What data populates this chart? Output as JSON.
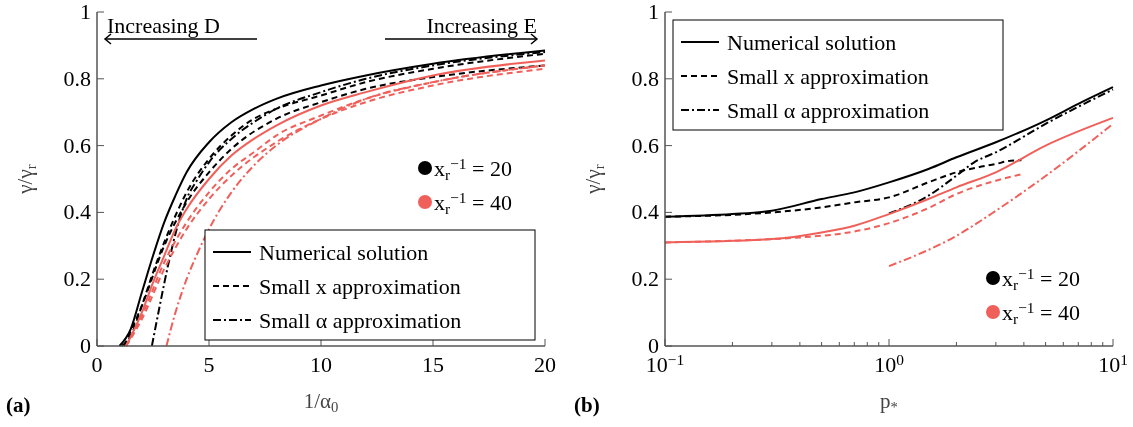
{
  "chart_data": [
    {
      "type": "line",
      "xlabel": "1/α$_{0}$",
      "ylabel": "γ/γ$_{r}$",
      "xlim": [
        0,
        20
      ],
      "xticks": [
        0,
        5,
        10,
        15,
        20
      ],
      "ylim": [
        0,
        1
      ],
      "yticks": [
        0,
        0.2,
        0.4,
        0.6,
        0.8,
        1
      ],
      "legend": "bottom right",
      "grid": false,
      "annotations": [
        "Increasing D",
        "Increasing E",
        "x$_{r}$$^{−1}$ = 20",
        "x$_{r}$$^{−1}$ = 40",
        "(a)"
      ],
      "series": [
        {
          "name": "Numerical solution",
          "color": "#000000",
          "line_style": "solid",
          "x": [
            1,
            1.5,
            2,
            2.5,
            3,
            3.5,
            4,
            5,
            6,
            7,
            8,
            10,
            12,
            15,
            20
          ],
          "values": [
            0,
            0.05,
            0.16,
            0.27,
            0.37,
            0.45,
            0.52,
            0.61,
            0.67,
            0.71,
            0.74,
            0.78,
            0.81,
            0.845,
            0.885
          ]
        },
        {
          "name": "Small x approximation",
          "color": "#000000",
          "line_style": "dashed",
          "x": [
            1.1,
            1.5,
            2,
            2.5,
            3,
            3.5,
            4,
            5,
            6,
            7,
            8,
            10,
            12,
            15,
            20
          ],
          "values": [
            0,
            0.03,
            0.12,
            0.22,
            0.31,
            0.39,
            0.46,
            0.56,
            0.63,
            0.68,
            0.71,
            0.75,
            0.79,
            0.83,
            0.875
          ]
        },
        {
          "color": "#000000",
          "line_style": "dashed",
          "x": [
            1.2,
            2,
            3,
            4,
            5,
            6,
            8,
            10,
            12,
            15,
            20
          ],
          "values": [
            0,
            0.12,
            0.3,
            0.43,
            0.52,
            0.59,
            0.68,
            0.73,
            0.77,
            0.805,
            0.84
          ]
        },
        {
          "name": "Small α approximation",
          "color": "#000000",
          "line_style": "dashdot",
          "x": [
            2.45,
            2.8,
            3.2,
            3.6,
            4,
            4.5,
            5,
            6,
            7,
            8,
            10,
            12,
            15,
            20
          ],
          "values": [
            0,
            0.12,
            0.25,
            0.36,
            0.44,
            0.5,
            0.55,
            0.62,
            0.67,
            0.71,
            0.76,
            0.8,
            0.84,
            0.88
          ]
        },
        {
          "color": "#f0605a",
          "line_style": "solid",
          "x": [
            1.3,
            2,
            2.5,
            3,
            3.5,
            4,
            5,
            6,
            7,
            8,
            10,
            12,
            15,
            20
          ],
          "values": [
            0,
            0.1,
            0.19,
            0.27,
            0.35,
            0.41,
            0.5,
            0.57,
            0.62,
            0.66,
            0.72,
            0.76,
            0.81,
            0.855
          ]
        },
        {
          "color": "#f0605a",
          "line_style": "dashed",
          "x": [
            1.3,
            2,
            3,
            4,
            5,
            6,
            7,
            8,
            10,
            12,
            15,
            20
          ],
          "values": [
            0,
            0.09,
            0.25,
            0.37,
            0.46,
            0.53,
            0.58,
            0.63,
            0.69,
            0.74,
            0.79,
            0.84
          ]
        },
        {
          "color": "#f0605a",
          "line_style": "dashed",
          "x": [
            1.3,
            2,
            3,
            4,
            5,
            6,
            8,
            10,
            12,
            15,
            20
          ],
          "values": [
            0,
            0.08,
            0.23,
            0.35,
            0.44,
            0.51,
            0.61,
            0.68,
            0.73,
            0.78,
            0.83
          ]
        },
        {
          "color": "#f0605a",
          "line_style": "dashdot",
          "x": [
            3.1,
            3.5,
            4,
            4.5,
            5,
            6,
            7,
            8,
            10,
            12,
            15,
            20
          ],
          "values": [
            0,
            0.1,
            0.2,
            0.28,
            0.35,
            0.46,
            0.54,
            0.6,
            0.68,
            0.74,
            0.79,
            0.84
          ]
        }
      ]
    },
    {
      "type": "line",
      "xlabel": "p$_{*}$",
      "ylabel": "γ/γ$_{r}$",
      "log": "x",
      "xlim": [
        0.1,
        10
      ],
      "xticks": [
        {
          "value": 0.1,
          "label": "10$^{−1}$"
        },
        {
          "value": 0.2,
          "label": null
        },
        {
          "value": 0.3,
          "label": null
        },
        {
          "value": 0.4,
          "label": null
        },
        {
          "value": 0.5,
          "label": null
        },
        {
          "value": 0.6,
          "label": null
        },
        {
          "value": 0.7,
          "label": null
        },
        {
          "value": 0.8,
          "label": null
        },
        {
          "value": 0.9,
          "label": null
        },
        {
          "value": 1,
          "label": "10$^{0}$"
        },
        {
          "value": 2,
          "label": null
        },
        {
          "value": 3,
          "label": null
        },
        {
          "value": 4,
          "label": null
        },
        {
          "value": 5,
          "label": null
        },
        {
          "value": 6,
          "label": null
        },
        {
          "value": 7,
          "label": null
        },
        {
          "value": 8,
          "label": null
        },
        {
          "value": 9,
          "label": null
        },
        {
          "value": 10,
          "label": "10$^{1}$"
        }
      ],
      "ylim": [
        0,
        1
      ],
      "yticks": [
        0,
        0.2,
        0.4,
        0.6,
        0.8,
        1
      ],
      "legend": "top left",
      "grid": false,
      "annotations": [
        "x$_{r}$$^{−1}$ = 20",
        "x$_{r}$$^{−1}$ = 40",
        "(b)"
      ],
      "series": [
        {
          "name": "Numerical solution",
          "color": "#000000",
          "line_style": "solid",
          "x": [
            0.1,
            0.2,
            0.3,
            0.5,
            0.7,
            1,
            1.5,
            2,
            3,
            5,
            7,
            10
          ],
          "values": [
            0.387,
            0.395,
            0.405,
            0.44,
            0.46,
            0.49,
            0.53,
            0.565,
            0.61,
            0.675,
            0.725,
            0.775
          ]
        },
        {
          "name": "Small x approximation",
          "color": "#000000",
          "line_style": "dashed",
          "x": [
            0.1,
            0.3,
            0.5,
            0.7,
            1,
            1.5,
            2,
            2.5,
            3,
            3.5,
            3.9
          ],
          "values": [
            0.387,
            0.4,
            0.415,
            0.43,
            0.445,
            0.49,
            0.52,
            0.535,
            0.545,
            0.555,
            0.556
          ]
        },
        {
          "name": "Small α approximation",
          "color": "#000000",
          "line_style": "dashdot",
          "x": [
            1,
            1.5,
            2,
            2.4,
            3,
            5,
            10
          ],
          "values": [
            0.397,
            0.45,
            0.51,
            0.55,
            0.58,
            0.665,
            0.768
          ]
        },
        {
          "color": "#f0605a",
          "line_style": "solid",
          "x": [
            0.1,
            0.3,
            0.5,
            0.7,
            1,
            1.5,
            2,
            3,
            5,
            10
          ],
          "values": [
            0.31,
            0.32,
            0.34,
            0.36,
            0.395,
            0.44,
            0.475,
            0.52,
            0.6,
            0.683
          ]
        },
        {
          "color": "#f0605a",
          "line_style": "dashed",
          "x": [
            0.1,
            0.5,
            1,
            1.5,
            2,
            3,
            3.9
          ],
          "values": [
            0.31,
            0.33,
            0.368,
            0.413,
            0.455,
            0.495,
            0.514
          ]
        },
        {
          "color": "#f0605a",
          "line_style": "dashdot",
          "x": [
            1,
            2,
            3,
            5,
            10
          ],
          "values": [
            0.239,
            0.33,
            0.405,
            0.509,
            0.665
          ]
        }
      ]
    }
  ]
}
